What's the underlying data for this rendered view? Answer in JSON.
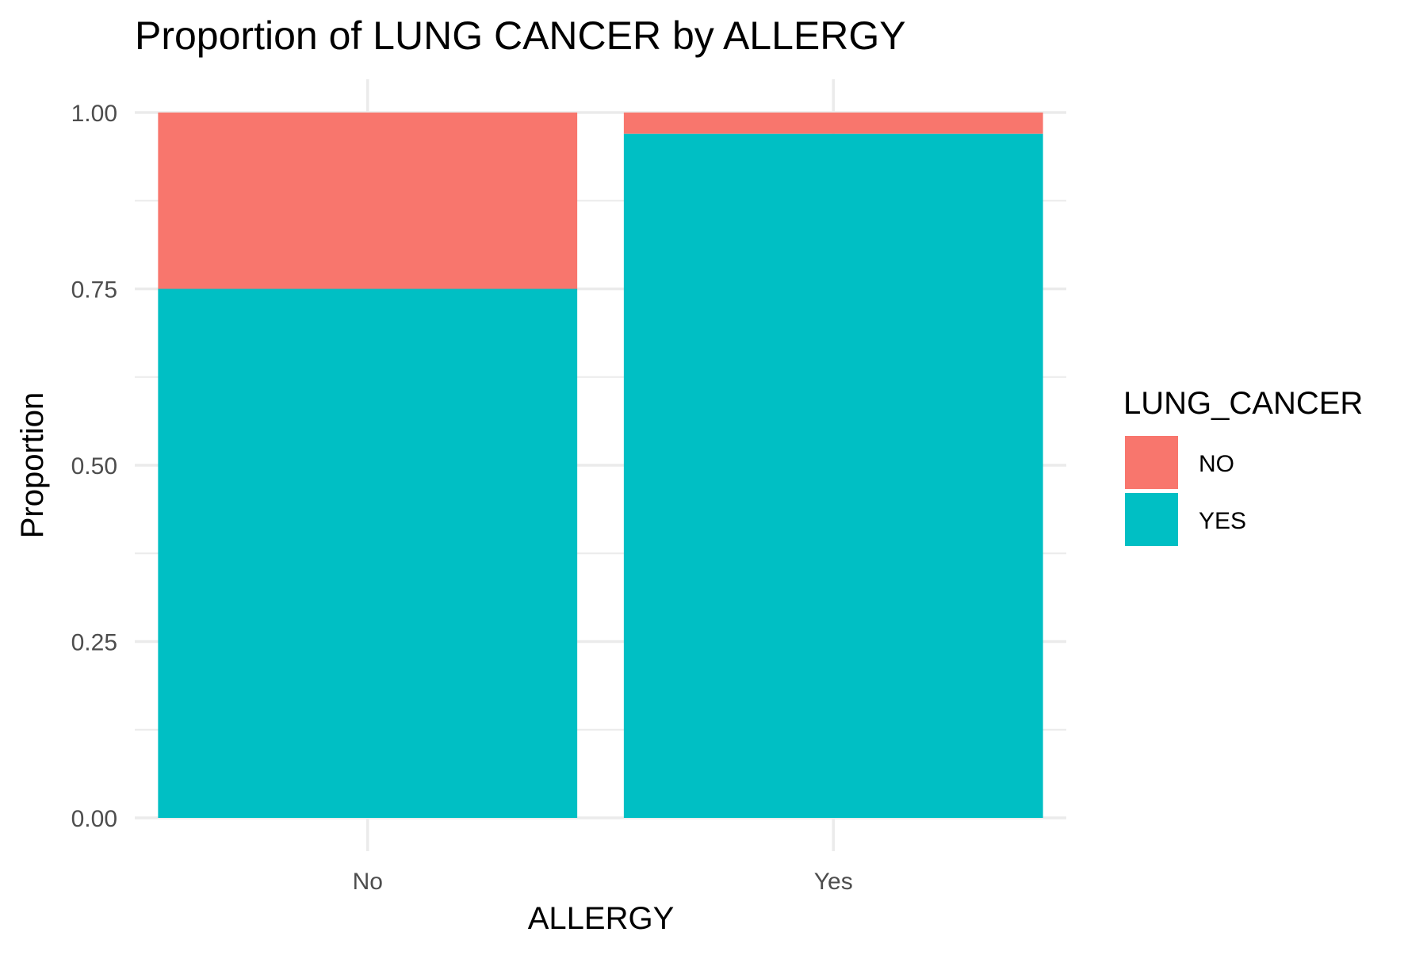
{
  "chart_data": {
    "type": "bar",
    "stacked": true,
    "title": "Proportion of LUNG CANCER by ALLERGY",
    "xlabel": "ALLERGY",
    "ylabel": "Proportion",
    "categories": [
      "No",
      "Yes"
    ],
    "series": [
      {
        "name": "NO",
        "color": "#F8766D",
        "values": [
          0.25,
          0.03
        ]
      },
      {
        "name": "YES",
        "color": "#00BFC4",
        "values": [
          0.75,
          0.97
        ]
      }
    ],
    "ylim": [
      0,
      1
    ],
    "yticks": [
      "0.00",
      "0.25",
      "0.50",
      "0.75",
      "1.00"
    ],
    "grid": true,
    "legend": {
      "title": "LUNG_CANCER",
      "position": "right",
      "entries": [
        "NO",
        "YES"
      ]
    }
  }
}
